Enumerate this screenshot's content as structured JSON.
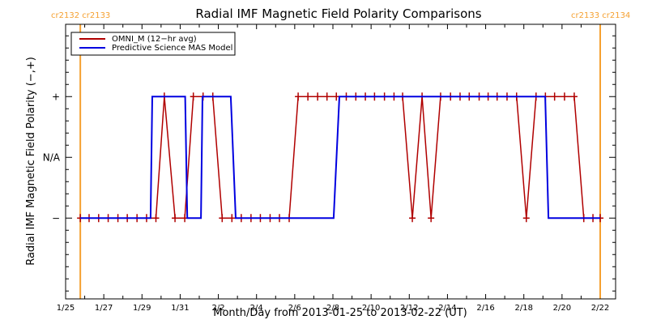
{
  "chart_data": {
    "type": "line",
    "title": "Radial IMF Magnetic Field Polarity Comparisons",
    "xlabel": "Month/Day from 2013-01-25 to 2013-02-22 (UT)",
    "ylabel": "Radial IMF Magnetic Field Polarity (−,+)",
    "x_units": "days since 2013-01-25 00:00 UT",
    "xlim": [
      0,
      28.8
    ],
    "ylim": [
      -2.33,
      2.19
    ],
    "x_tick_labels": [
      "1/25",
      "1/27",
      "1/29",
      "1/31",
      "2/2",
      "2/4",
      "2/6",
      "2/8",
      "2/10",
      "2/12",
      "2/14",
      "2/16",
      "2/18",
      "2/20",
      "2/22"
    ],
    "x_tick_label_values": [
      0,
      2,
      4,
      6,
      8,
      10,
      12,
      14,
      16,
      18,
      20,
      22,
      24,
      26,
      28
    ],
    "x_minor_tick_step_days": 1,
    "y_tick_labels": [
      {
        "value": 1,
        "label": "+"
      },
      {
        "value": 0,
        "label": "N/A"
      },
      {
        "value": -1,
        "label": "−"
      }
    ],
    "carrington_markers": [
      {
        "x": 0.77,
        "label": "cr2132 cr2133"
      },
      {
        "x": 28.0,
        "label": "cr2133 cr2134"
      }
    ],
    "carrington_color": "#f5a030",
    "legend": {
      "placement": "top-left",
      "entries": [
        {
          "name": "OMNI_M (12−hr avg)",
          "color": "#b00000"
        },
        {
          "name": "Predictive Science MAS Model",
          "color": "#0000e0"
        }
      ]
    },
    "series": [
      {
        "name": "OMNI_M (12-hr avg)",
        "color": "#b00000",
        "marker": "plus",
        "points": [
          [
            0.77,
            -1
          ],
          [
            1.23,
            -1
          ],
          [
            1.73,
            -1
          ],
          [
            2.23,
            -1
          ],
          [
            2.74,
            -1
          ],
          [
            3.23,
            -1
          ],
          [
            3.74,
            -1
          ],
          [
            4.24,
            -1
          ],
          [
            4.73,
            -1
          ],
          [
            5.17,
            1
          ],
          [
            5.73,
            -1
          ],
          [
            6.24,
            -1
          ],
          [
            6.69,
            1
          ],
          [
            7.2,
            1
          ],
          [
            7.71,
            1
          ],
          [
            8.2,
            -1
          ],
          [
            8.71,
            -1
          ],
          [
            9.2,
            -1
          ],
          [
            9.71,
            -1
          ],
          [
            10.2,
            -1
          ],
          [
            10.71,
            -1
          ],
          [
            11.2,
            -1
          ],
          [
            11.71,
            -1
          ],
          [
            12.18,
            1
          ],
          [
            12.69,
            1
          ],
          [
            13.2,
            1
          ],
          [
            13.69,
            1
          ],
          [
            14.18,
            1
          ],
          [
            14.7,
            1
          ],
          [
            15.2,
            1
          ],
          [
            15.7,
            1
          ],
          [
            16.18,
            1
          ],
          [
            16.7,
            1
          ],
          [
            17.2,
            1
          ],
          [
            17.65,
            1
          ],
          [
            18.16,
            -1
          ],
          [
            18.67,
            1
          ],
          [
            19.14,
            -1
          ],
          [
            19.64,
            1
          ],
          [
            20.16,
            1
          ],
          [
            20.66,
            1
          ],
          [
            21.14,
            1
          ],
          [
            21.66,
            1
          ],
          [
            22.13,
            1
          ],
          [
            22.6,
            1
          ],
          [
            23.12,
            1
          ],
          [
            23.62,
            1
          ],
          [
            24.13,
            -1
          ],
          [
            24.64,
            1
          ],
          [
            25.13,
            1
          ],
          [
            25.61,
            1
          ],
          [
            26.13,
            1
          ],
          [
            26.64,
            1
          ],
          [
            27.14,
            -1
          ],
          [
            27.62,
            -1
          ],
          [
            28.0,
            -1
          ]
        ]
      },
      {
        "name": "Predictive Science MAS Model",
        "color": "#0000e0",
        "marker": "none",
        "points": [
          [
            0.77,
            -1
          ],
          [
            4.45,
            -1
          ],
          [
            4.54,
            1
          ],
          [
            6.26,
            1
          ],
          [
            6.37,
            -1
          ],
          [
            7.09,
            -1
          ],
          [
            7.17,
            1
          ],
          [
            8.65,
            1
          ],
          [
            8.91,
            -1
          ],
          [
            14.04,
            -1
          ],
          [
            14.34,
            1
          ],
          [
            25.12,
            1
          ],
          [
            25.29,
            -1
          ],
          [
            28.0,
            -1
          ]
        ]
      }
    ]
  }
}
